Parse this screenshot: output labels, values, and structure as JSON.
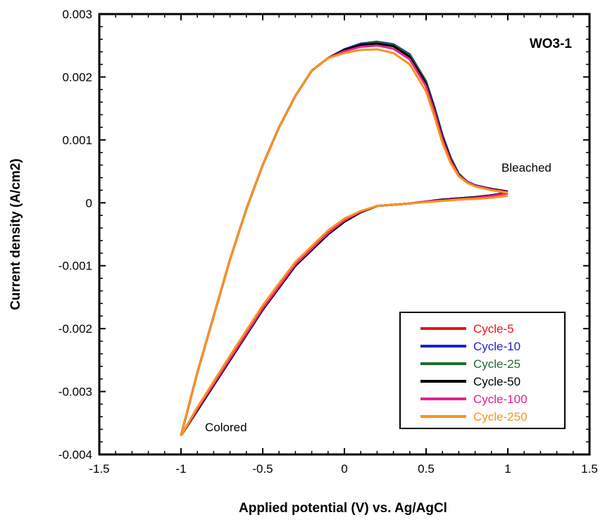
{
  "chart_data": {
    "type": "line",
    "title": "WO3-1",
    "xlabel": "Applied potential (V) vs. Ag/AgCl",
    "ylabel": "Current density (A/cm2)",
    "xlim": [
      -1.5,
      1.5
    ],
    "ylim": [
      -0.004,
      0.003
    ],
    "x_ticks": [
      -1.5,
      -1,
      -0.5,
      0,
      0.5,
      1,
      1.5
    ],
    "x_tick_labels": [
      "-1.5",
      "-1",
      "-0.5",
      "0",
      "0.5",
      "1",
      "1.5"
    ],
    "y_ticks": [
      -0.004,
      -0.003,
      -0.002,
      -0.001,
      0,
      0.001,
      0.002,
      0.003
    ],
    "y_tick_labels": [
      "-0.004",
      "-0.003",
      "-0.002",
      "-0.001",
      "0",
      "0.001",
      "0.002",
      "0.003"
    ],
    "grid": false,
    "legend_position": "bottom-right",
    "annotations": [
      {
        "text": "Bleached",
        "x": 1.0,
        "y": 0.00022
      },
      {
        "text": "Colored",
        "x": -1.0,
        "y": -0.0037
      }
    ],
    "series": [
      {
        "name": "Cycle-5",
        "color": "#e8141b",
        "anodic": [
          [
            -1.0,
            -0.0037
          ],
          [
            -0.9,
            -0.0027
          ],
          [
            -0.8,
            -0.0018
          ],
          [
            -0.7,
            -0.0009
          ],
          [
            -0.6,
            -0.0001
          ],
          [
            -0.5,
            0.0006
          ],
          [
            -0.4,
            0.0012
          ],
          [
            -0.3,
            0.0017
          ],
          [
            -0.2,
            0.0021
          ],
          [
            -0.1,
            0.0023
          ],
          [
            0.0,
            0.00243
          ],
          [
            0.1,
            0.00252
          ],
          [
            0.2,
            0.00254
          ],
          [
            0.3,
            0.0025
          ],
          [
            0.4,
            0.00233
          ],
          [
            0.5,
            0.0019
          ],
          [
            0.55,
            0.0015
          ],
          [
            0.6,
            0.00105
          ],
          [
            0.65,
            0.0007
          ],
          [
            0.7,
            0.00045
          ],
          [
            0.75,
            0.00033
          ],
          [
            0.8,
            0.00027
          ],
          [
            0.9,
            0.00022
          ],
          [
            1.0,
            0.00018
          ]
        ],
        "cathodic": [
          [
            1.0,
            0.00016
          ],
          [
            0.9,
            0.00012
          ],
          [
            0.8,
            9e-05
          ],
          [
            0.7,
            7e-05
          ],
          [
            0.6,
            5e-05
          ],
          [
            0.5,
            2e-05
          ],
          [
            0.4,
            -1e-05
          ],
          [
            0.3,
            -3e-05
          ],
          [
            0.2,
            -5e-05
          ],
          [
            0.1,
            -0.00015
          ],
          [
            0.0,
            -0.0003
          ],
          [
            -0.1,
            -0.0005
          ],
          [
            -0.2,
            -0.00075
          ],
          [
            -0.3,
            -0.001
          ],
          [
            -0.4,
            -0.00135
          ],
          [
            -0.5,
            -0.0017
          ],
          [
            -0.6,
            -0.0021
          ],
          [
            -0.7,
            -0.0025
          ],
          [
            -0.8,
            -0.0029
          ],
          [
            -0.9,
            -0.0033
          ],
          [
            -1.0,
            -0.0037
          ]
        ]
      },
      {
        "name": "Cycle-10",
        "color": "#1f1fd4",
        "anodic": [
          [
            -1.0,
            -0.0037
          ],
          [
            -0.9,
            -0.0027
          ],
          [
            -0.8,
            -0.0018
          ],
          [
            -0.7,
            -0.0009
          ],
          [
            -0.6,
            -0.0001
          ],
          [
            -0.5,
            0.0006
          ],
          [
            -0.4,
            0.0012
          ],
          [
            -0.3,
            0.0017
          ],
          [
            -0.2,
            0.0021
          ],
          [
            -0.1,
            0.0023
          ],
          [
            0.0,
            0.00244
          ],
          [
            0.1,
            0.00253
          ],
          [
            0.2,
            0.00256
          ],
          [
            0.3,
            0.00252
          ],
          [
            0.4,
            0.00236
          ],
          [
            0.5,
            0.00193
          ],
          [
            0.55,
            0.00153
          ],
          [
            0.6,
            0.00108
          ],
          [
            0.65,
            0.00072
          ],
          [
            0.7,
            0.00046
          ],
          [
            0.75,
            0.00034
          ],
          [
            0.8,
            0.00028
          ],
          [
            0.9,
            0.00022
          ],
          [
            1.0,
            0.00018
          ]
        ],
        "cathodic": [
          [
            1.0,
            0.00016
          ],
          [
            0.9,
            0.00012
          ],
          [
            0.8,
            9e-05
          ],
          [
            0.7,
            7e-05
          ],
          [
            0.6,
            5e-05
          ],
          [
            0.5,
            2e-05
          ],
          [
            0.4,
            -1e-05
          ],
          [
            0.3,
            -3e-05
          ],
          [
            0.2,
            -5e-05
          ],
          [
            0.1,
            -0.00015
          ],
          [
            0.0,
            -0.0003
          ],
          [
            -0.1,
            -0.0005
          ],
          [
            -0.2,
            -0.00075
          ],
          [
            -0.3,
            -0.001
          ],
          [
            -0.4,
            -0.00135
          ],
          [
            -0.5,
            -0.0017
          ],
          [
            -0.6,
            -0.0021
          ],
          [
            -0.7,
            -0.0025
          ],
          [
            -0.8,
            -0.0029
          ],
          [
            -0.9,
            -0.0033
          ],
          [
            -1.0,
            -0.0037
          ]
        ]
      },
      {
        "name": "Cycle-25",
        "color": "#1e6b2e",
        "anodic": [
          [
            -1.0,
            -0.0037
          ],
          [
            -0.9,
            -0.0027
          ],
          [
            -0.8,
            -0.0018
          ],
          [
            -0.7,
            -0.0009
          ],
          [
            -0.6,
            -0.0001
          ],
          [
            -0.5,
            0.0006
          ],
          [
            -0.4,
            0.0012
          ],
          [
            -0.3,
            0.0017
          ],
          [
            -0.2,
            0.0021
          ],
          [
            -0.1,
            0.0023
          ],
          [
            0.0,
            0.00243
          ],
          [
            0.1,
            0.00252
          ],
          [
            0.2,
            0.00255
          ],
          [
            0.3,
            0.00251
          ],
          [
            0.4,
            0.00235
          ],
          [
            0.5,
            0.00192
          ],
          [
            0.55,
            0.00152
          ],
          [
            0.6,
            0.00107
          ],
          [
            0.65,
            0.00071
          ],
          [
            0.7,
            0.00046
          ],
          [
            0.75,
            0.00034
          ],
          [
            0.8,
            0.00027
          ],
          [
            0.9,
            0.00022
          ],
          [
            1.0,
            0.00018
          ]
        ],
        "cathodic": [
          [
            1.0,
            0.00016
          ],
          [
            0.9,
            0.00012
          ],
          [
            0.8,
            9e-05
          ],
          [
            0.7,
            7e-05
          ],
          [
            0.6,
            5e-05
          ],
          [
            0.5,
            2e-05
          ],
          [
            0.4,
            -1e-05
          ],
          [
            0.3,
            -3e-05
          ],
          [
            0.2,
            -5e-05
          ],
          [
            0.1,
            -0.00015
          ],
          [
            0.0,
            -0.0003
          ],
          [
            -0.1,
            -0.0005
          ],
          [
            -0.2,
            -0.00075
          ],
          [
            -0.3,
            -0.001
          ],
          [
            -0.4,
            -0.00135
          ],
          [
            -0.5,
            -0.0017
          ],
          [
            -0.6,
            -0.0021
          ],
          [
            -0.7,
            -0.0025
          ],
          [
            -0.8,
            -0.0029
          ],
          [
            -0.9,
            -0.0033
          ],
          [
            -1.0,
            -0.0037
          ]
        ]
      },
      {
        "name": "Cycle-50",
        "color": "#000000",
        "anodic": [
          [
            -1.0,
            -0.0037
          ],
          [
            -0.9,
            -0.0027
          ],
          [
            -0.8,
            -0.0018
          ],
          [
            -0.7,
            -0.0009
          ],
          [
            -0.6,
            -0.0001
          ],
          [
            -0.5,
            0.0006
          ],
          [
            -0.4,
            0.0012
          ],
          [
            -0.3,
            0.0017
          ],
          [
            -0.2,
            0.0021
          ],
          [
            -0.1,
            0.0023
          ],
          [
            0.0,
            0.00243
          ],
          [
            0.1,
            0.00251
          ],
          [
            0.2,
            0.00253
          ],
          [
            0.3,
            0.00249
          ],
          [
            0.4,
            0.00232
          ],
          [
            0.5,
            0.00189
          ],
          [
            0.55,
            0.00149
          ],
          [
            0.6,
            0.00104
          ],
          [
            0.65,
            0.00069
          ],
          [
            0.7,
            0.00045
          ],
          [
            0.75,
            0.00033
          ],
          [
            0.8,
            0.00027
          ],
          [
            0.9,
            0.00022
          ],
          [
            1.0,
            0.00018
          ]
        ],
        "cathodic": [
          [
            1.0,
            0.00016
          ],
          [
            0.9,
            0.00012
          ],
          [
            0.8,
            9e-05
          ],
          [
            0.7,
            7e-05
          ],
          [
            0.6,
            5e-05
          ],
          [
            0.5,
            2e-05
          ],
          [
            0.4,
            -1e-05
          ],
          [
            0.3,
            -3e-05
          ],
          [
            0.2,
            -5e-05
          ],
          [
            0.1,
            -0.00015
          ],
          [
            0.0,
            -0.0003
          ],
          [
            -0.1,
            -0.0005
          ],
          [
            -0.2,
            -0.00075
          ],
          [
            -0.3,
            -0.001
          ],
          [
            -0.4,
            -0.00135
          ],
          [
            -0.5,
            -0.0017
          ],
          [
            -0.6,
            -0.0021
          ],
          [
            -0.7,
            -0.0025
          ],
          [
            -0.8,
            -0.0029
          ],
          [
            -0.9,
            -0.0033
          ],
          [
            -1.0,
            -0.0037
          ]
        ]
      },
      {
        "name": "Cycle-100",
        "color": "#e81f8c",
        "anodic": [
          [
            -1.0,
            -0.0037
          ],
          [
            -0.9,
            -0.0027
          ],
          [
            -0.8,
            -0.0018
          ],
          [
            -0.7,
            -0.0009
          ],
          [
            -0.6,
            -0.0001
          ],
          [
            -0.5,
            0.0006
          ],
          [
            -0.4,
            0.0012
          ],
          [
            -0.3,
            0.0017
          ],
          [
            -0.2,
            0.0021
          ],
          [
            -0.1,
            0.0023
          ],
          [
            0.0,
            0.00241
          ],
          [
            0.1,
            0.00248
          ],
          [
            0.2,
            0.0025
          ],
          [
            0.3,
            0.00245
          ],
          [
            0.4,
            0.00228
          ],
          [
            0.5,
            0.00185
          ],
          [
            0.55,
            0.00146
          ],
          [
            0.6,
            0.00101
          ],
          [
            0.65,
            0.00067
          ],
          [
            0.7,
            0.00044
          ],
          [
            0.75,
            0.00033
          ],
          [
            0.8,
            0.00027
          ],
          [
            0.9,
            0.00021
          ],
          [
            1.0,
            0.00017
          ]
        ],
        "cathodic": [
          [
            1.0,
            0.00015
          ],
          [
            0.9,
            0.00011
          ],
          [
            0.8,
            8e-05
          ],
          [
            0.7,
            6e-05
          ],
          [
            0.6,
            4e-05
          ],
          [
            0.5,
            2e-05
          ],
          [
            0.4,
            -1e-05
          ],
          [
            0.3,
            -3e-05
          ],
          [
            0.2,
            -5e-05
          ],
          [
            0.1,
            -0.00014
          ],
          [
            0.0,
            -0.00028
          ],
          [
            -0.1,
            -0.00048
          ],
          [
            -0.2,
            -0.00073
          ],
          [
            -0.3,
            -0.00098
          ],
          [
            -0.4,
            -0.00133
          ],
          [
            -0.5,
            -0.00168
          ],
          [
            -0.6,
            -0.00208
          ],
          [
            -0.7,
            -0.00248
          ],
          [
            -0.8,
            -0.00288
          ],
          [
            -0.9,
            -0.00328
          ],
          [
            -1.0,
            -0.0037
          ]
        ]
      },
      {
        "name": "Cycle-250",
        "color": "#f7941d",
        "anodic": [
          [
            -1.0,
            -0.0037
          ],
          [
            -0.9,
            -0.0027
          ],
          [
            -0.8,
            -0.0018
          ],
          [
            -0.7,
            -0.0009
          ],
          [
            -0.6,
            -0.0001
          ],
          [
            -0.5,
            0.0006
          ],
          [
            -0.4,
            0.0012
          ],
          [
            -0.3,
            0.0017
          ],
          [
            -0.2,
            0.0021
          ],
          [
            -0.1,
            0.0023
          ],
          [
            0.0,
            0.00238
          ],
          [
            0.1,
            0.00243
          ],
          [
            0.2,
            0.00244
          ],
          [
            0.3,
            0.00238
          ],
          [
            0.4,
            0.0022
          ],
          [
            0.5,
            0.00177
          ],
          [
            0.55,
            0.00138
          ],
          [
            0.6,
            0.00095
          ],
          [
            0.65,
            0.00063
          ],
          [
            0.7,
            0.00042
          ],
          [
            0.75,
            0.00032
          ],
          [
            0.8,
            0.00026
          ],
          [
            0.9,
            0.0002
          ],
          [
            1.0,
            0.00016
          ]
        ],
        "cathodic": [
          [
            1.0,
            0.00011
          ],
          [
            0.9,
            8e-05
          ],
          [
            0.8,
            6e-05
          ],
          [
            0.7,
            5e-05
          ],
          [
            0.6,
            3e-05
          ],
          [
            0.5,
            1e-05
          ],
          [
            0.4,
            -1e-05
          ],
          [
            0.3,
            -3e-05
          ],
          [
            0.2,
            -5e-05
          ],
          [
            0.1,
            -0.00013
          ],
          [
            0.0,
            -0.00025
          ],
          [
            -0.1,
            -0.00044
          ],
          [
            -0.2,
            -0.00069
          ],
          [
            -0.3,
            -0.00094
          ],
          [
            -0.4,
            -0.00128
          ],
          [
            -0.5,
            -0.00163
          ],
          [
            -0.6,
            -0.00203
          ],
          [
            -0.7,
            -0.00243
          ],
          [
            -0.8,
            -0.00284
          ],
          [
            -0.9,
            -0.00325
          ],
          [
            -1.0,
            -0.0037
          ]
        ]
      }
    ]
  }
}
